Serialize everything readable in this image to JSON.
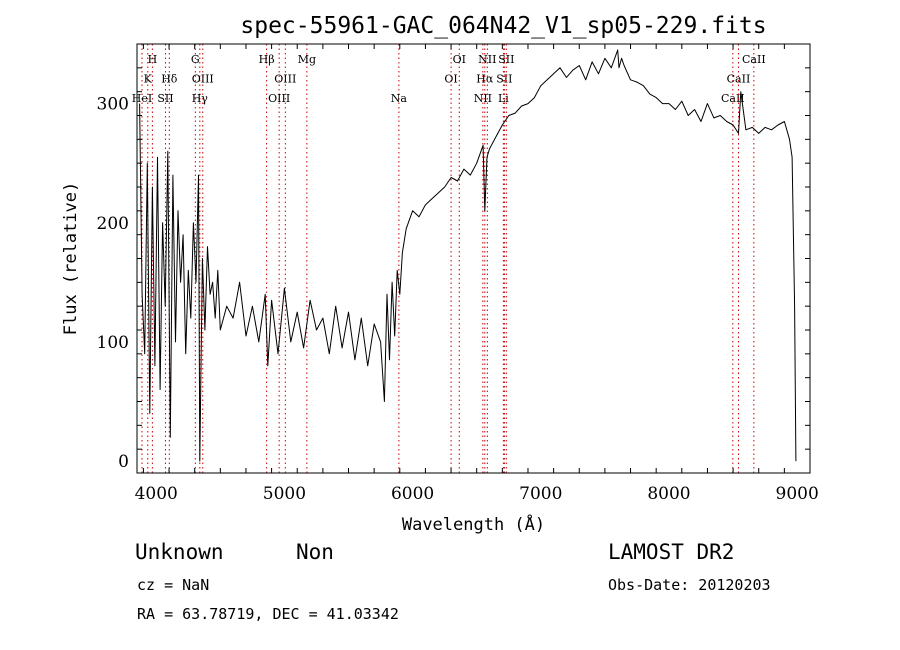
{
  "chart_data": {
    "type": "line",
    "title": "spec-55961-GAC_064N42_V1_sp05-229.fits",
    "xlabel": "Wavelength (Å)",
    "ylabel": "Flux (relative)",
    "xlim": [
      3850,
      9100
    ],
    "ylim": [
      -10,
      350
    ],
    "xticks": [
      4000,
      5000,
      6000,
      7000,
      8000,
      9000
    ],
    "yticks": [
      0,
      100,
      200,
      300
    ],
    "line_color": "#000000",
    "marker_color": "#cc0000",
    "series": [
      {
        "x": [
          3870,
          3890,
          3910,
          3930,
          3950,
          3970,
          3990,
          4010,
          4030,
          4050,
          4070,
          4090,
          4110,
          4130,
          4150,
          4170,
          4190,
          4210,
          4230,
          4250,
          4270,
          4290,
          4310,
          4330,
          4340,
          4360,
          4380,
          4400,
          4420,
          4440,
          4460,
          4480,
          4500,
          4550,
          4600,
          4650,
          4700,
          4750,
          4800,
          4850,
          4870,
          4900,
          4950,
          5000,
          5050,
          5100,
          5150,
          5200,
          5250,
          5300,
          5350,
          5400,
          5450,
          5500,
          5550,
          5600,
          5650,
          5700,
          5750,
          5780,
          5800,
          5820,
          5840,
          5860,
          5880,
          5900,
          5920,
          5950,
          6000,
          6050,
          6100,
          6150,
          6200,
          6250,
          6300,
          6350,
          6400,
          6450,
          6500,
          6550,
          6563,
          6580,
          6600,
          6650,
          6700,
          6750,
          6800,
          6850,
          6900,
          6950,
          7000,
          7050,
          7100,
          7150,
          7200,
          7250,
          7300,
          7350,
          7400,
          7450,
          7500,
          7550,
          7600,
          7610,
          7630,
          7650,
          7700,
          7750,
          7800,
          7850,
          7900,
          7950,
          8000,
          8050,
          8100,
          8150,
          8200,
          8250,
          8300,
          8350,
          8400,
          8450,
          8500,
          8542,
          8560,
          8600,
          8650,
          8700,
          8750,
          8800,
          8850,
          8900,
          8940,
          8960,
          8980,
          8990
        ],
        "y": [
          300,
          140,
          90,
          250,
          40,
          230,
          80,
          255,
          60,
          200,
          130,
          260,
          20,
          240,
          100,
          210,
          150,
          190,
          90,
          160,
          120,
          200,
          150,
          240,
          0,
          170,
          110,
          180,
          140,
          150,
          120,
          160,
          110,
          130,
          120,
          150,
          105,
          130,
          100,
          140,
          80,
          135,
          90,
          145,
          100,
          125,
          95,
          135,
          110,
          120,
          90,
          130,
          95,
          125,
          85,
          120,
          80,
          115,
          100,
          50,
          140,
          85,
          150,
          105,
          160,
          140,
          175,
          195,
          210,
          205,
          215,
          220,
          225,
          230,
          238,
          235,
          245,
          240,
          250,
          265,
          210,
          255,
          262,
          272,
          282,
          290,
          292,
          298,
          300,
          305,
          315,
          320,
          325,
          330,
          322,
          328,
          332,
          320,
          335,
          325,
          338,
          330,
          345,
          330,
          338,
          332,
          320,
          318,
          315,
          308,
          305,
          300,
          300,
          295,
          302,
          290,
          295,
          285,
          300,
          288,
          290,
          285,
          282,
          275,
          310,
          278,
          280,
          275,
          280,
          278,
          282,
          285,
          270,
          255,
          130,
          0
        ]
      }
    ],
    "line_markers": [
      {
        "x": 3889,
        "label": "HeI",
        "row": 3
      },
      {
        "x": 3934,
        "label": "K",
        "row": 2
      },
      {
        "x": 3970,
        "label": "H",
        "row": 1
      },
      {
        "x": 4072,
        "label": "SII",
        "row": 3
      },
      {
        "x": 4102,
        "label": "Hδ",
        "row": 2
      },
      {
        "x": 4305,
        "label": "G",
        "row": 1
      },
      {
        "x": 4340,
        "label": "Hγ",
        "row": 3
      },
      {
        "x": 4363,
        "label": "OIII",
        "row": 2
      },
      {
        "x": 4861,
        "label": "Hβ",
        "row": 1
      },
      {
        "x": 4959,
        "label": "OIII",
        "row": 3
      },
      {
        "x": 5007,
        "label": "OIII",
        "row": 2
      },
      {
        "x": 5175,
        "label": "Mg",
        "row": 1
      },
      {
        "x": 5893,
        "label": "Na",
        "row": 3
      },
      {
        "x": 6300,
        "label": "OI",
        "row": 2
      },
      {
        "x": 6364,
        "label": "OI",
        "row": 1
      },
      {
        "x": 6548,
        "label": "NII",
        "row": 3
      },
      {
        "x": 6563,
        "label": "Hα",
        "row": 2
      },
      {
        "x": 6583,
        "label": "NII",
        "row": 1
      },
      {
        "x": 6708,
        "label": "Li",
        "row": 3
      },
      {
        "x": 6716,
        "label": "SII",
        "row": 2
      },
      {
        "x": 6731,
        "label": "SII",
        "row": 1
      },
      {
        "x": 8498,
        "label": "CaII",
        "row": 3
      },
      {
        "x": 8542,
        "label": "CaII",
        "row": 2
      },
      {
        "x": 8662,
        "label": "CaII",
        "row": 1
      }
    ]
  },
  "info": {
    "class_name": "Unknown",
    "subclass": "Non",
    "survey": "LAMOST DR2",
    "cz": "cz = NaN",
    "obs_date": "Obs-Date: 20120203",
    "coords": "RA =  63.78719, DEC =  41.03342"
  }
}
